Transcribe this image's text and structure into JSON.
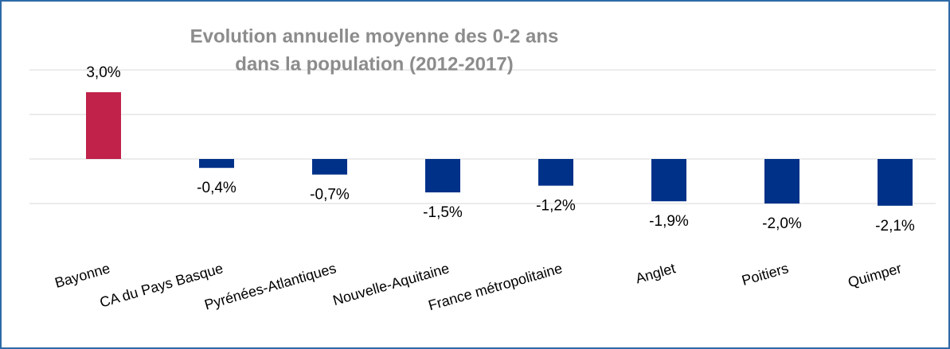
{
  "chart_data": {
    "type": "bar",
    "title": [
      "Evolution annuelle moyenne des 0-2 ans",
      "dans la population (2012-2017)"
    ],
    "categories": [
      "Bayonne",
      "CA du Pays Basque",
      "Pyrénées-Atlantiques",
      "Nouvelle-Aquitaine",
      "France métropolitaine",
      "Anglet",
      "Poitiers",
      "Quimper"
    ],
    "values": [
      3.0,
      -0.4,
      -0.7,
      -1.5,
      -1.2,
      -1.9,
      -2.0,
      -2.1
    ],
    "value_labels": [
      "3,0%",
      "-0,4%",
      "-0,7%",
      "-1,5%",
      "-1,2%",
      "-1,9%",
      "-2,0%",
      "-2,1%"
    ],
    "colors": [
      "#c0224a",
      "#003189",
      "#003189",
      "#003189",
      "#003189",
      "#003189",
      "#003189",
      "#003189"
    ],
    "ylim": [
      -4,
      4
    ],
    "yticks": [
      -2,
      0,
      2,
      4
    ],
    "grid": true
  }
}
